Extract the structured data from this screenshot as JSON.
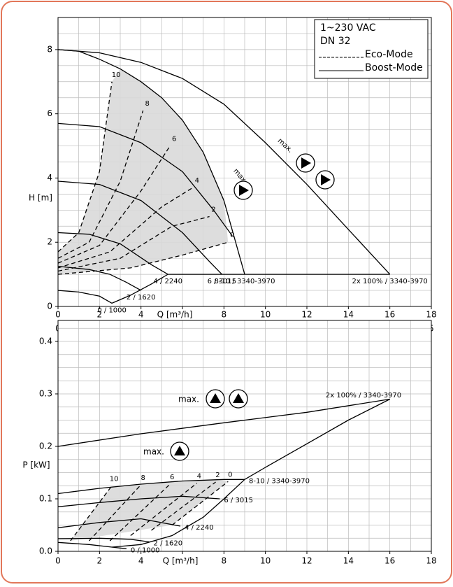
{
  "chart_data": [
    {
      "type": "line",
      "xlabel": "Q [m³/h]",
      "ylabel": "H [m]",
      "color": "#000000",
      "shade_color": "#d9d9d9",
      "xlim": [
        0,
        18
      ],
      "xticks": [
        0,
        2,
        4,
        6,
        8,
        10,
        12,
        14,
        16,
        18
      ],
      "ylim": [
        0,
        9
      ],
      "yticks": [
        0,
        2,
        4,
        6,
        8
      ],
      "grid": true,
      "x2label": "Q [l/s]",
      "x2lim": [
        0,
        5
      ],
      "x2ticks": [
        0,
        1,
        2,
        3,
        4,
        5
      ],
      "legend": {
        "lines": [
          "1~230 VAC",
          "DN 32"
        ],
        "entries": [
          {
            "label": "Eco-Mode",
            "style": "dashed"
          },
          {
            "label": "Boost-Mode",
            "style": "solid"
          }
        ]
      },
      "annotations": [
        "max.",
        "max."
      ],
      "series": [
        {
          "style": "solid",
          "label": "2x 100% / 3340-3970",
          "x": [
            0,
            2,
            4,
            6,
            8,
            10,
            12,
            14,
            16
          ],
          "y": [
            8,
            7.9,
            7.6,
            7.1,
            6.3,
            5.1,
            3.8,
            2.4,
            1.0
          ]
        },
        {
          "style": "solid",
          "label": "8-10 / 3340-3970",
          "x": [
            0,
            1,
            2,
            3,
            4,
            5,
            6,
            7,
            8,
            9
          ],
          "y": [
            8,
            7.95,
            7.7,
            7.4,
            7.0,
            6.5,
            5.8,
            4.8,
            3.3,
            1.0
          ]
        },
        {
          "style": "solid",
          "x": [
            0,
            2,
            4,
            6,
            7.5,
            8.4
          ],
          "y": [
            5.7,
            5.6,
            5.1,
            4.2,
            3.0,
            2.2
          ]
        },
        {
          "style": "solid",
          "label": "6 / 3015",
          "x": [
            0,
            2,
            4,
            6,
            7.3,
            7.9
          ],
          "y": [
            3.9,
            3.8,
            3.3,
            2.3,
            1.4,
            1.0
          ]
        },
        {
          "style": "solid",
          "label": "4 / 2240",
          "x": [
            0,
            1.5,
            3,
            4.5,
            5.3
          ],
          "y": [
            2.3,
            2.25,
            1.95,
            1.3,
            1.0
          ]
        },
        {
          "style": "solid",
          "label": "2 / 1620",
          "x": [
            0,
            1.5,
            2.5,
            3.3,
            4.0
          ],
          "y": [
            1.25,
            1.15,
            1.0,
            0.75,
            0.5
          ]
        },
        {
          "style": "solid",
          "label": "0 / 1000",
          "x": [
            0,
            1,
            2,
            2.6
          ],
          "y": [
            0.5,
            0.45,
            0.32,
            0.1
          ]
        },
        {
          "style": "solid",
          "x": [
            2.6,
            3.5,
            4.5,
            5.3,
            16
          ],
          "y": [
            0.1,
            0.35,
            0.7,
            1.0,
            1.0
          ]
        },
        {
          "style": "dashed",
          "label": "10",
          "x": [
            0,
            1,
            2,
            2.6
          ],
          "y": [
            1.7,
            2.3,
            4.2,
            7.0
          ]
        },
        {
          "style": "dashed",
          "label": "8",
          "x": [
            0,
            1.5,
            3,
            4.1
          ],
          "y": [
            1.5,
            2.0,
            3.9,
            6.1
          ]
        },
        {
          "style": "dashed",
          "label": "6",
          "x": [
            0,
            2,
            4,
            5.4
          ],
          "y": [
            1.35,
            1.9,
            3.6,
            5.0
          ]
        },
        {
          "style": "dashed",
          "label": "4",
          "x": [
            0,
            2.5,
            5,
            6.5
          ],
          "y": [
            1.2,
            1.7,
            3.1,
            3.7
          ]
        },
        {
          "style": "dashed",
          "label": "2",
          "x": [
            0,
            3,
            5.5,
            7.3
          ],
          "y": [
            1.1,
            1.5,
            2.5,
            2.8
          ]
        },
        {
          "style": "dashed",
          "label": "0",
          "x": [
            0,
            3.5,
            6,
            8.2
          ],
          "y": [
            1.0,
            1.2,
            1.6,
            2.0
          ]
        }
      ]
    },
    {
      "type": "line",
      "xlabel": "Q [m³/h]",
      "ylabel": "P [kW]",
      "color": "#000000",
      "shade_color": "#d9d9d9",
      "xlim": [
        0,
        18
      ],
      "xticks": [
        0,
        2,
        4,
        6,
        8,
        10,
        12,
        14,
        16,
        18
      ],
      "ylim": [
        0,
        0.4
      ],
      "yticks": [
        {
          "value": 0,
          "label": "0.0"
        },
        0.1,
        0.2,
        0.3,
        0.4
      ],
      "grid": true,
      "annotations": [
        "max.",
        "max."
      ],
      "series": [
        {
          "style": "solid",
          "label": "2x 100% / 3340-3970",
          "x": [
            0,
            4,
            8,
            12,
            16
          ],
          "y": [
            0.2,
            0.224,
            0.245,
            0.265,
            0.29
          ]
        },
        {
          "style": "solid",
          "x": [
            9,
            10,
            12,
            14,
            16
          ],
          "y": [
            0.137,
            0.16,
            0.205,
            0.25,
            0.29
          ]
        },
        {
          "style": "solid",
          "label": "8-10 / 3340-3970",
          "x": [
            0,
            2,
            4,
            6,
            8,
            9
          ],
          "y": [
            0.11,
            0.12,
            0.128,
            0.134,
            0.137,
            0.137
          ]
        },
        {
          "style": "solid",
          "label": "6 / 3015",
          "x": [
            0,
            2,
            4,
            6,
            7.8
          ],
          "y": [
            0.085,
            0.093,
            0.1,
            0.105,
            0.1
          ]
        },
        {
          "style": "solid",
          "label": "4 / 2240",
          "x": [
            0,
            2,
            4,
            5.9
          ],
          "y": [
            0.045,
            0.055,
            0.062,
            0.048
          ]
        },
        {
          "style": "solid",
          "label": "2 / 1620",
          "x": [
            0,
            2,
            3.5,
            4.4
          ],
          "y": [
            0.024,
            0.025,
            0.023,
            0.018
          ]
        },
        {
          "style": "solid",
          "label": "0 / 1000",
          "x": [
            0,
            1.5,
            2.6,
            3.3
          ],
          "y": [
            0.017,
            0.013,
            0.008,
            0.005
          ]
        },
        {
          "style": "solid",
          "x": [
            2.6,
            4,
            5.5,
            7,
            8,
            9
          ],
          "y": [
            0.008,
            0.013,
            0.03,
            0.065,
            0.1,
            0.137
          ]
        },
        {
          "style": "dashed",
          "label": "10",
          "x": [
            0.6,
            2.6
          ],
          "y": [
            0.02,
            0.125
          ]
        },
        {
          "style": "dashed",
          "label": "8",
          "x": [
            1.5,
            4.0
          ],
          "y": [
            0.02,
            0.127
          ]
        },
        {
          "style": "dashed",
          "label": "6",
          "x": [
            2.5,
            5.4
          ],
          "y": [
            0.02,
            0.128
          ]
        },
        {
          "style": "dashed",
          "label": "4",
          "x": [
            3.5,
            6.7
          ],
          "y": [
            0.03,
            0.13
          ]
        },
        {
          "style": "dashed",
          "label": "2",
          "x": [
            4.5,
            7.6
          ],
          "y": [
            0.04,
            0.132
          ]
        },
        {
          "style": "dashed",
          "label": "0",
          "x": [
            5.5,
            8.2
          ],
          "y": [
            0.05,
            0.133
          ]
        }
      ]
    }
  ]
}
